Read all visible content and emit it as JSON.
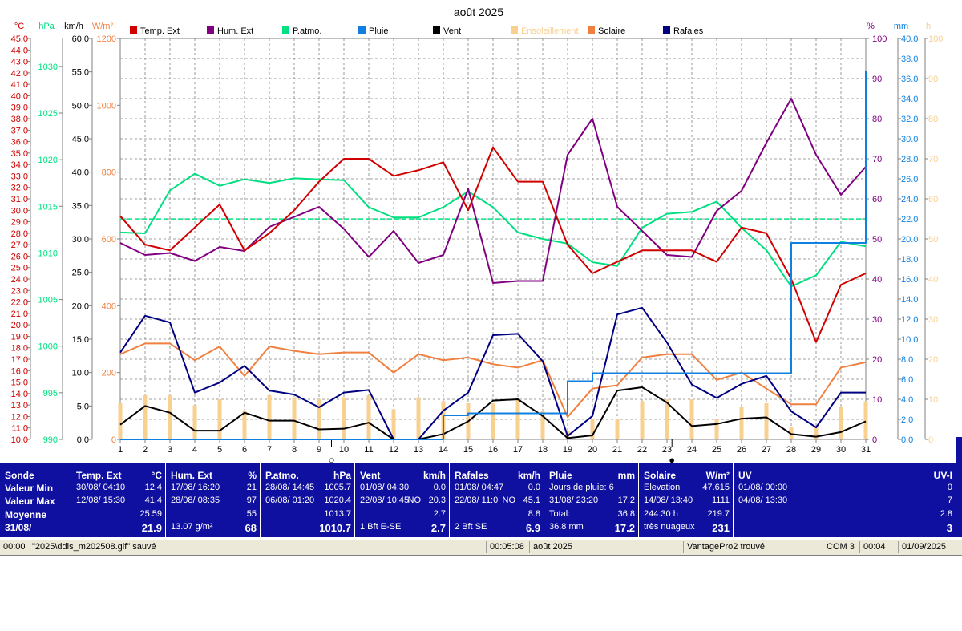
{
  "chart_data": {
    "type": "line",
    "title": "août 2025",
    "x": [
      1,
      2,
      3,
      4,
      5,
      6,
      7,
      8,
      9,
      10,
      11,
      12,
      13,
      14,
      15,
      16,
      17,
      18,
      19,
      20,
      21,
      22,
      23,
      24,
      25,
      26,
      27,
      28,
      29,
      30,
      31
    ],
    "axes": {
      "temp": {
        "unit": "°C",
        "min": 10,
        "max": 45,
        "ticks": [
          "45.0",
          "44.0",
          "43.0",
          "42.0",
          "41.0",
          "40.0",
          "39.0",
          "38.0",
          "37.0",
          "36.0",
          "35.0",
          "34.0",
          "33.0",
          "32.0",
          "31.0",
          "30.0",
          "29.0",
          "28.0",
          "27.0",
          "26.0",
          "25.0",
          "24.0",
          "23.0",
          "22.0",
          "21.0",
          "20.0",
          "19.0",
          "18.0",
          "17.0",
          "16.0",
          "15.0",
          "14.0",
          "13.0",
          "12.0",
          "11.0",
          "10.0"
        ]
      },
      "pressure": {
        "unit": "hPa",
        "min": 990,
        "max": 1033,
        "ticks": [
          "1030",
          "1025",
          "1020",
          "1015",
          "1010",
          "1005",
          "1000",
          "995",
          "990"
        ]
      },
      "wind": {
        "unit": "km/h",
        "min": 0,
        "max": 60,
        "ticks": [
          "60.0",
          "55.0",
          "50.0",
          "45.0",
          "40.0",
          "35.0",
          "30.0",
          "25.0",
          "20.0",
          "15.0",
          "10.0",
          "5.0",
          "0.0"
        ]
      },
      "solar": {
        "unit": "W/m²",
        "min": 0,
        "max": 1200,
        "ticks": [
          "1200",
          "1000",
          "800",
          "600",
          "400",
          "200",
          "0"
        ]
      },
      "humidity": {
        "unit": "%",
        "min": 0,
        "max": 100,
        "ticks": [
          "100",
          "90",
          "80",
          "70",
          "60",
          "50",
          "40",
          "30",
          "20",
          "10",
          "0"
        ]
      },
      "rain": {
        "unit": "mm",
        "min": 0,
        "max": 40,
        "ticks": [
          "40.0",
          "38.0",
          "36.0",
          "34.0",
          "32.0",
          "30.0",
          "28.0",
          "26.0",
          "24.0",
          "22.0",
          "20.0",
          "18.0",
          "16.0",
          "14.0",
          "12.0",
          "10.0",
          "8.0",
          "6.0",
          "4.0",
          "2.0",
          "0.0"
        ]
      },
      "sun": {
        "unit": "h",
        "min": 0,
        "max": 100,
        "ticks": [
          "100",
          "90",
          "80",
          "70",
          "60",
          "50",
          "40",
          "30",
          "20",
          "10",
          "0"
        ]
      }
    },
    "legend": [
      "Temp. Ext",
      "Hum. Ext",
      "P.atmo.",
      "Pluie",
      "Vent",
      "Ensoleillement",
      "Solaire",
      "Rafales"
    ],
    "series": [
      {
        "name": "Temp. Ext",
        "axis": "temp",
        "color": "#d00000",
        "values": [
          29.5,
          27.0,
          26.5,
          28.5,
          30.5,
          26.5,
          28.0,
          30.0,
          32.5,
          34.5,
          34.5,
          33.0,
          33.5,
          34.2,
          30.0,
          35.5,
          32.5,
          32.5,
          27.0,
          24.5,
          25.5,
          26.5,
          26.5,
          26.5,
          25.5,
          28.5,
          28.0,
          24.0,
          18.5,
          23.5,
          24.5
        ]
      },
      {
        "name": "Hum. Ext",
        "axis": "humidity",
        "color": "#800080",
        "values": [
          49,
          46,
          46.5,
          44.5,
          48,
          47,
          53,
          55.5,
          58,
          52.5,
          45.5,
          52,
          44,
          46,
          62.5,
          39,
          39.5,
          39.5,
          71,
          80,
          58,
          52,
          46,
          45.5,
          57,
          62,
          74,
          85,
          71,
          61,
          68
        ]
      },
      {
        "name": "P.atmo.",
        "axis": "pressure",
        "color": "#00e080",
        "values": [
          1012.2,
          1012.1,
          1016.7,
          1018.5,
          1017.2,
          1017.9,
          1017.5,
          1018.0,
          1017.9,
          1017.8,
          1014.9,
          1013.8,
          1013.8,
          1014.9,
          1016.6,
          1014.9,
          1012.2,
          1011.5,
          1011.0,
          1009.0,
          1008.6,
          1012.7,
          1014.2,
          1014.4,
          1015.5,
          1012.7,
          1010.3,
          1006.4,
          1007.6,
          1011.2,
          1010.7
        ]
      },
      {
        "name": "Pluie",
        "axis": "rain",
        "color": "#1080e0",
        "values": [
          0,
          0,
          0,
          0,
          0,
          0,
          0,
          0,
          0,
          0,
          0,
          0,
          0,
          2.4,
          2.6,
          2.6,
          2.6,
          2.6,
          5.8,
          6.6,
          6.6,
          6.6,
          6.6,
          6.6,
          6.6,
          6.6,
          6.6,
          19.6,
          19.6,
          19.6,
          36.8
        ]
      },
      {
        "name": "Vent",
        "axis": "wind",
        "color": "#000000",
        "values": [
          2.2,
          5.0,
          4.0,
          1.3,
          1.3,
          4.0,
          2.8,
          2.8,
          1.5,
          1.6,
          2.5,
          0,
          0,
          0.8,
          2.7,
          5.8,
          6.0,
          3.5,
          0.2,
          0.6,
          7.3,
          7.8,
          5.5,
          2.0,
          2.3,
          3.1,
          3.3,
          0.8,
          0.4,
          1.1,
          2.7
        ]
      },
      {
        "name": "Rafales",
        "axis": "wind",
        "color": "#000080",
        "values": [
          13.0,
          18.5,
          17.5,
          7.0,
          8.5,
          11.0,
          7.3,
          6.7,
          4.8,
          7.0,
          7.4,
          0,
          0,
          4.3,
          7.0,
          15.6,
          15.8,
          11.7,
          0.5,
          3.5,
          18.7,
          19.7,
          14.5,
          8.2,
          6.2,
          8.3,
          9.5,
          4.2,
          1.8,
          7.0,
          7.0
        ]
      },
      {
        "name": "Solaire",
        "axis": "solar",
        "color": "#f08040",
        "values": [
          255,
          287,
          287,
          237,
          278,
          190,
          278,
          265,
          255,
          260,
          260,
          200,
          255,
          237,
          245,
          225,
          215,
          237,
          67,
          152,
          162,
          245,
          255,
          255,
          178,
          200,
          152,
          105,
          105,
          215,
          231
        ]
      },
      {
        "name": "Ensoleillement",
        "axis": "sun",
        "color": "#f8d090",
        "values": [
          9,
          11,
          11,
          8.5,
          10,
          7,
          11,
          10.5,
          10,
          10.5,
          11,
          7.5,
          10.5,
          9.5,
          9,
          9,
          10,
          7,
          2,
          5,
          5,
          9.5,
          10,
          10,
          5,
          8,
          9,
          3,
          3,
          8,
          9.5
        ]
      }
    ],
    "x_markers": [
      {
        "x": 9.5,
        "symbol": "○"
      },
      {
        "x": 23.2,
        "symbol": "●"
      }
    ]
  },
  "stats": [
    {
      "head": "Sonde",
      "unit": "",
      "rows": [
        [
          "Valeur Min",
          "",
          ""
        ],
        [
          "Valeur Max",
          "",
          ""
        ],
        [
          "Moyenne",
          "",
          ""
        ],
        [
          "31/08/",
          "",
          ""
        ]
      ]
    },
    {
      "head": "Temp. Ext",
      "unit": "°C",
      "rows": [
        [
          "30/08/  04:10",
          "",
          "12.4"
        ],
        [
          "12/08/  15:30",
          "",
          "41.4"
        ],
        [
          "",
          "",
          "25.59"
        ],
        [
          "",
          "",
          "21.9"
        ]
      ]
    },
    {
      "head": "Hum. Ext",
      "unit": "%",
      "rows": [
        [
          "17/08/  16:20",
          "",
          "21"
        ],
        [
          "28/08/  08:35",
          "",
          "97"
        ],
        [
          "",
          "",
          "55"
        ],
        [
          "13.07 g/m²",
          "",
          "68"
        ]
      ]
    },
    {
      "head": "P.atmo.",
      "unit": "hPa",
      "rows": [
        [
          "28/08/  14:45",
          "",
          "1005.7"
        ],
        [
          "06/08/  01:20",
          "",
          "1020.4"
        ],
        [
          "",
          "",
          "1013.7"
        ],
        [
          "",
          "",
          "1010.7"
        ]
      ]
    },
    {
      "head": "Vent",
      "unit": "km/h",
      "rows": [
        [
          "01/08/  04:30",
          "",
          "0.0"
        ],
        [
          "22/08/  10:45",
          "NO",
          "20.3"
        ],
        [
          "",
          "",
          "2.7"
        ],
        [
          "1 Bft E-SE",
          "",
          "2.7"
        ]
      ]
    },
    {
      "head": "Rafales",
      "unit": "km/h",
      "rows": [
        [
          "01/08/  04:47",
          "",
          "0.0"
        ],
        [
          "22/08/  11:0",
          "NO",
          "45.1"
        ],
        [
          "",
          "",
          "8.8"
        ],
        [
          "2 Bft SE",
          "",
          "6.9"
        ]
      ]
    },
    {
      "head": "Pluie",
      "unit": "mm",
      "rows": [
        [
          "Jours de pluie: 6",
          "",
          ""
        ],
        [
          "31/08/  23:20",
          "",
          "17.2"
        ],
        [
          "Total:",
          "",
          "36.8"
        ],
        [
          "36.8 mm",
          "",
          "17.2"
        ]
      ]
    },
    {
      "head": "Solaire",
      "unit": "W/m²",
      "rows": [
        [
          "Elevation",
          "",
          "47.615"
        ],
        [
          "14/08/  13:40",
          "",
          "1111"
        ],
        [
          "244:30 h",
          "",
          "219.7"
        ],
        [
          "très nuageux",
          "",
          "231"
        ]
      ]
    },
    {
      "head": "UV",
      "unit": "UV-I",
      "rows": [
        [
          "01/08/  00:00",
          "",
          "0"
        ],
        [
          "04/08/  13:30",
          "",
          "7"
        ],
        [
          "",
          "",
          "2.8"
        ],
        [
          "",
          "",
          "3"
        ]
      ]
    }
  ],
  "statusbar": {
    "time": "00:00",
    "message": "\"2025\\ddis_m202508.gif\"  sauvé",
    "elapsed": "00:05:08",
    "period": "août 2025",
    "station": "VantagePro2 trouvé",
    "port": "COM 3",
    "clock": "00:04",
    "date": "01/09/2025"
  },
  "colors": {
    "grid": "#808080",
    "panel": "#1010a0",
    "temp": "#d00000",
    "pressure": "#00e080",
    "wind": "#000000",
    "solar": "#f08040",
    "humidity": "#800080",
    "rain": "#1080e0",
    "sun": "#f8d090"
  }
}
